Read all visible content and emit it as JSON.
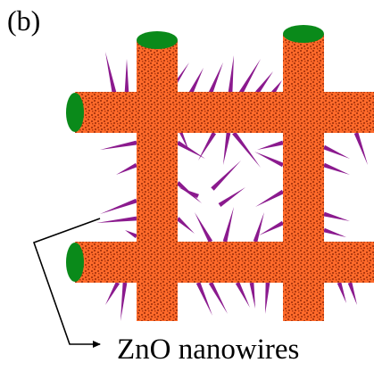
{
  "panel_label": "(b)",
  "callout_label": "ZnO nanowires",
  "colors": {
    "rod_fill": "#FF6A2A",
    "rod_dot": "#B03A10",
    "rod_end": "#0A8A1A",
    "nanowire": "#8B1A8E",
    "arrow": "#000000"
  }
}
